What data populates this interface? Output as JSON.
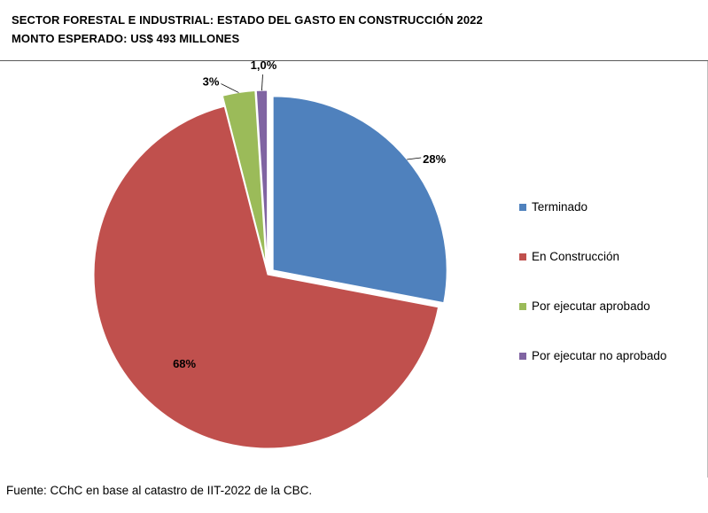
{
  "header": {
    "title_line1": "SECTOR FORESTAL E INDUSTRIAL: ESTADO DEL GASTO EN CONSTRUCCIÓN 2022",
    "title_line2": "MONTO ESPERADO: US$ 493 MILLONES"
  },
  "chart_data": {
    "type": "pie",
    "title": "SECTOR FORESTAL E INDUSTRIAL: ESTADO DEL GASTO EN CONSTRUCCIÓN 2022",
    "subtitle": "MONTO ESPERADO: US$ 493 MILLONES",
    "categories": [
      "Terminado",
      "En Construcción",
      "Por ejecutar aprobado",
      "Por ejecutar no aprobado"
    ],
    "values": [
      28,
      68,
      3,
      1.0
    ],
    "data_labels": [
      "28%",
      "68%",
      "3%",
      "1,0%"
    ],
    "colors": [
      "#4f81bd",
      "#c0504d",
      "#9bbb59",
      "#8064a2"
    ],
    "legend_position": "right",
    "exploded": true
  },
  "footer": {
    "source": "Fuente: CChC  en base al catastro de IIT-2022 de la CBC."
  }
}
